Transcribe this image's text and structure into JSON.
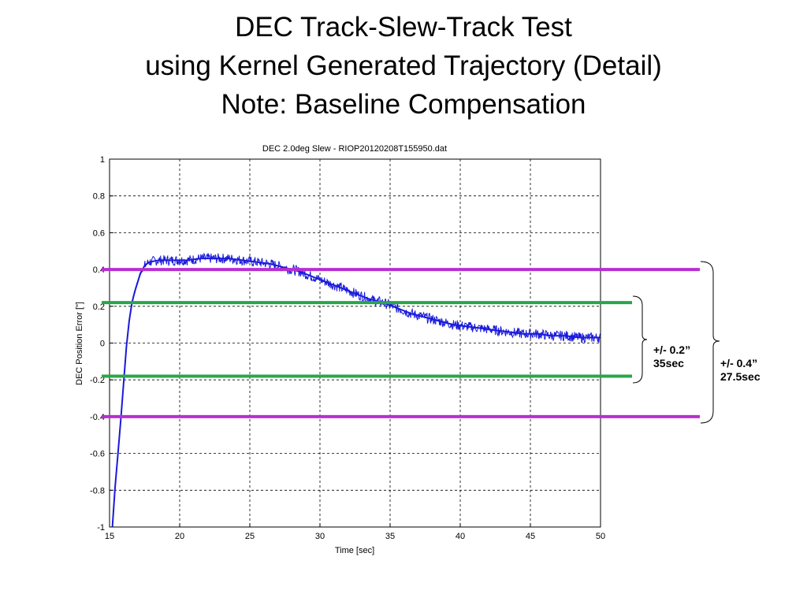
{
  "slide": {
    "title_lines": [
      "DEC Track-Slew-Track Test",
      "using Kernel Generated Trajectory (Detail)",
      "Note: Baseline Compensation"
    ]
  },
  "chart_data": {
    "type": "line",
    "title": "DEC 2.0deg Slew - RIOP20120208T155950.dat",
    "xlabel": "Time [sec]",
    "ylabel": "DEC Position Error [\"]",
    "xlim": [
      15,
      50
    ],
    "ylim": [
      -1,
      1
    ],
    "x_ticks": [
      15,
      20,
      25,
      30,
      35,
      40,
      45,
      50
    ],
    "x_tick_labels": [
      "15",
      "20",
      "25",
      "30",
      "35",
      "40",
      "45",
      "50"
    ],
    "y_ticks": [
      1,
      0.8,
      0.6,
      0.4,
      0.2,
      0,
      -0.2,
      -0.4,
      -0.6,
      -0.8,
      -1
    ],
    "y_tick_labels": [
      "1",
      "0.8",
      "0.6",
      "0.4",
      "0.2",
      "0",
      "-0.2",
      "-0.4",
      "-0.6",
      "-0.8",
      "-1"
    ],
    "grid": true,
    "series": [
      {
        "color": "#1a1adc",
        "x": [
          15.2,
          15.4,
          15.6,
          15.8,
          16.0,
          16.2,
          16.4,
          16.6,
          16.8,
          17.0,
          17.2,
          17.5,
          17.8,
          18.5,
          19.5,
          20.5,
          21.5,
          22.5,
          23.5,
          24.5,
          25.5,
          26.5,
          27.5,
          28.5,
          29.5,
          30.5,
          31.5,
          32.5,
          33.5,
          34.5,
          35.5,
          36.5,
          37.5,
          38.5,
          39.5,
          40.5,
          41.5,
          42.5,
          43.5,
          44.5,
          45.5,
          46.5,
          47.5,
          48.5,
          49.5,
          50.0
        ],
        "y": [
          -1.0,
          -0.78,
          -0.6,
          -0.42,
          -0.22,
          -0.02,
          0.12,
          0.22,
          0.28,
          0.33,
          0.38,
          0.42,
          0.44,
          0.45,
          0.45,
          0.45,
          0.46,
          0.46,
          0.46,
          0.45,
          0.44,
          0.43,
          0.41,
          0.39,
          0.36,
          0.33,
          0.3,
          0.27,
          0.24,
          0.22,
          0.19,
          0.16,
          0.14,
          0.12,
          0.1,
          0.09,
          0.08,
          0.07,
          0.06,
          0.05,
          0.05,
          0.04,
          0.04,
          0.03,
          0.03,
          0.03
        ]
      }
    ],
    "overlay_lines": [
      {
        "y": 0.4,
        "color": "#b82ed2"
      },
      {
        "y": -0.4,
        "color": "#b82ed2"
      },
      {
        "y": 0.22,
        "color": "#2aa64a"
      },
      {
        "y": -0.18,
        "color": "#2aa64a"
      }
    ]
  },
  "annotations": {
    "tol_02": {
      "line1": "+/- 0.2”",
      "line2": "35sec"
    },
    "tol_04": {
      "line1": "+/- 0.4”",
      "line2": "27.5sec"
    }
  }
}
